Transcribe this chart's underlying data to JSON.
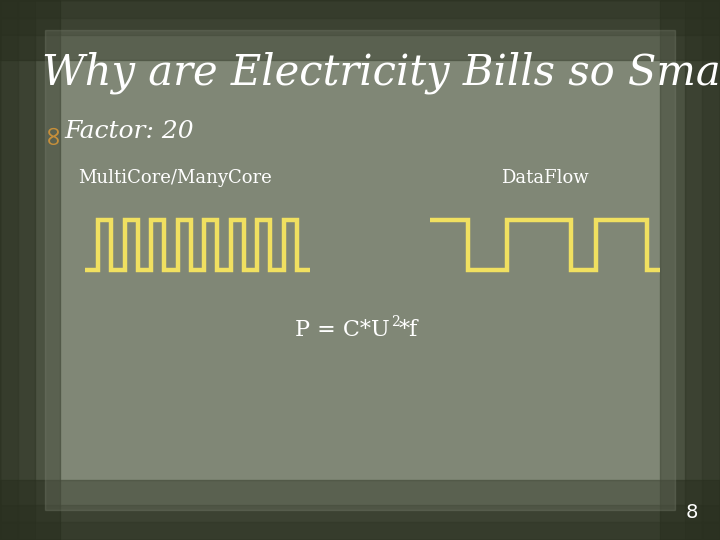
{
  "title": "Why are Electricity Bills so Small?",
  "bullet_symbol": "∞",
  "bullet_text": "Factor: 20",
  "label_left": "MultiCore/ManyCore",
  "label_right": "DataFlow",
  "formula_text": "P = C*U",
  "formula_super": "2",
  "formula_suffix": "*f",
  "page_number": "8",
  "bg_color": "#7d8573",
  "bg_inner_color": "#8a9080",
  "wave_color": "#f0e060",
  "title_color": "#ffffff",
  "text_color": "#ffffff",
  "bullet_icon_color": "#c8903a",
  "line_width": 3.2,
  "title_fontsize": 30,
  "bullet_fontsize": 18,
  "label_fontsize": 13,
  "formula_fontsize": 16,
  "page_fontsize": 14
}
